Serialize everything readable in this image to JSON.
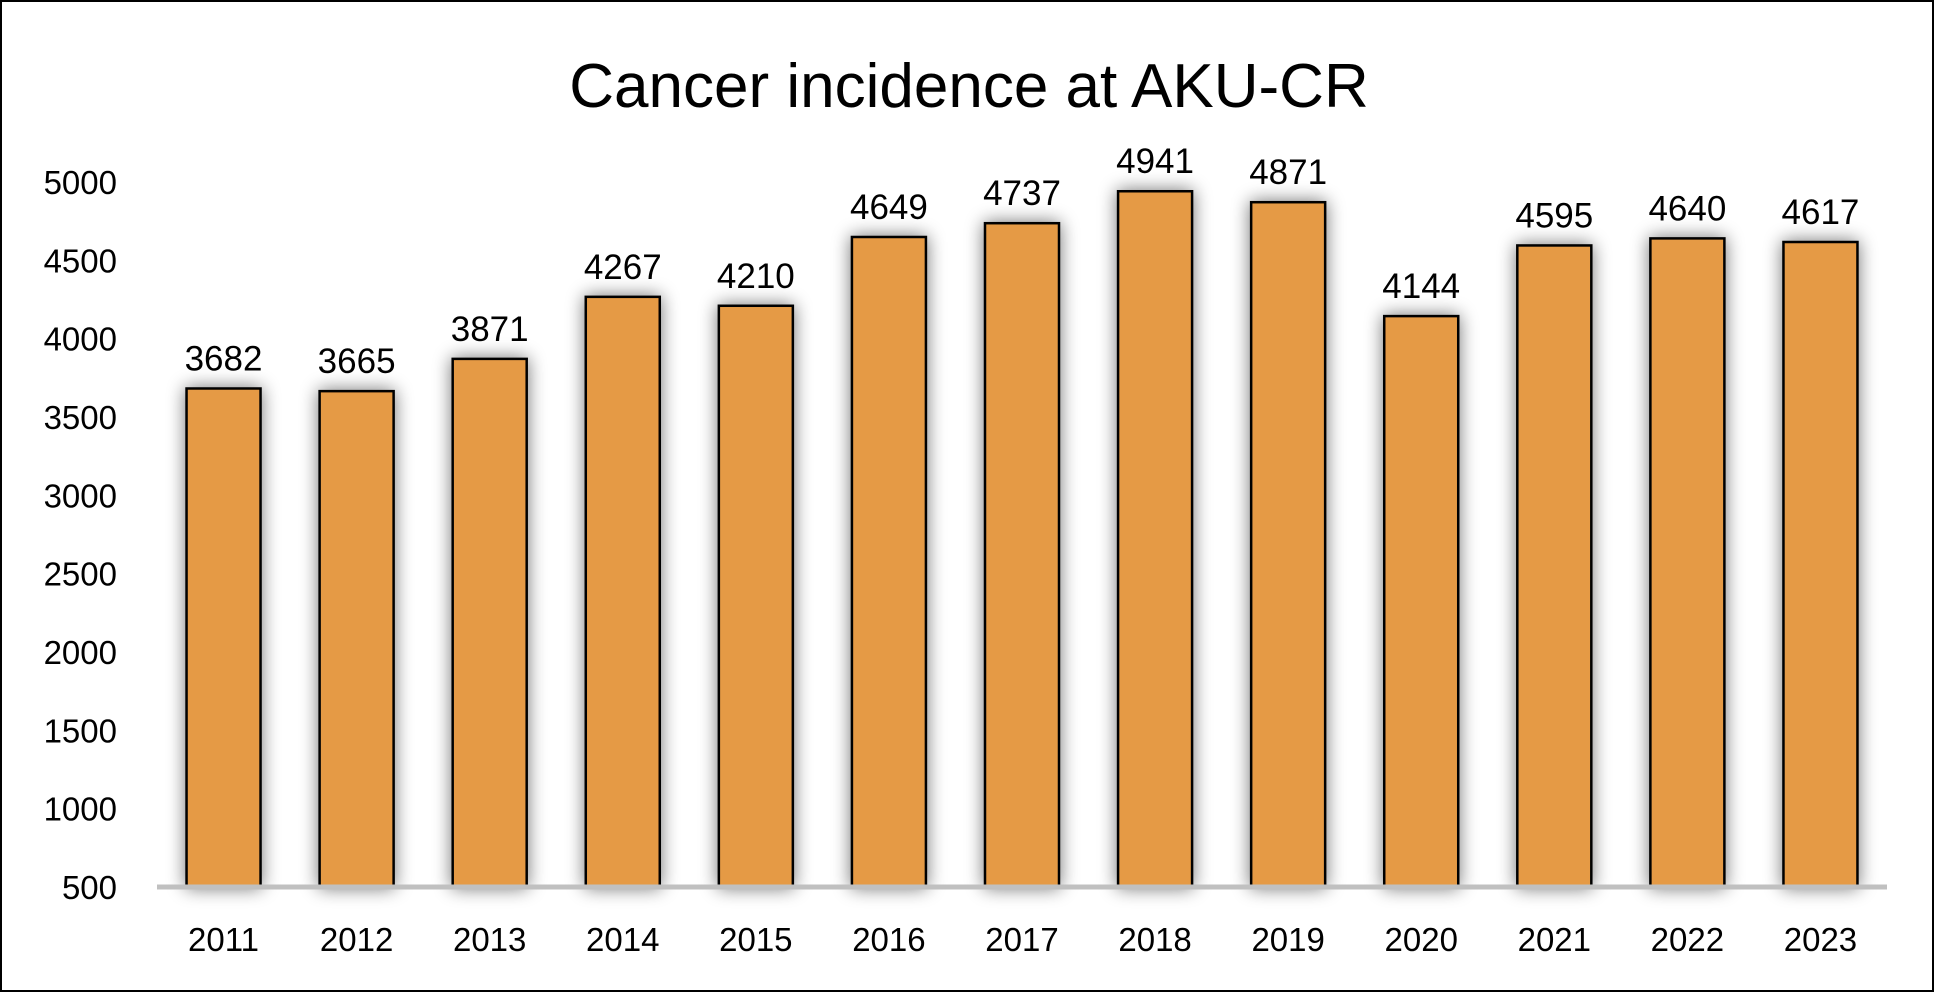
{
  "chart_data": {
    "type": "bar",
    "title": "Cancer incidence at AKU-CR",
    "xlabel": "",
    "ylabel": "",
    "categories": [
      "2011",
      "2012",
      "2013",
      "2014",
      "2015",
      "2016",
      "2017",
      "2018",
      "2019",
      "2020",
      "2021",
      "2022",
      "2023"
    ],
    "values": [
      3682,
      3665,
      3871,
      4267,
      4210,
      4649,
      4737,
      4941,
      4871,
      4144,
      4595,
      4640,
      4617
    ],
    "ylim": [
      500,
      5000
    ],
    "yticks": [
      "500",
      "1000",
      "1500",
      "2000",
      "2500",
      "3000",
      "3500",
      "4000",
      "4500",
      "5000"
    ],
    "data_labels": true,
    "grid": false,
    "legend": "none",
    "colors": {
      "bar_fill": "#E59A45",
      "bar_stroke": "#000000",
      "axis": "#C0C0C0",
      "shadow": "#999999"
    }
  }
}
